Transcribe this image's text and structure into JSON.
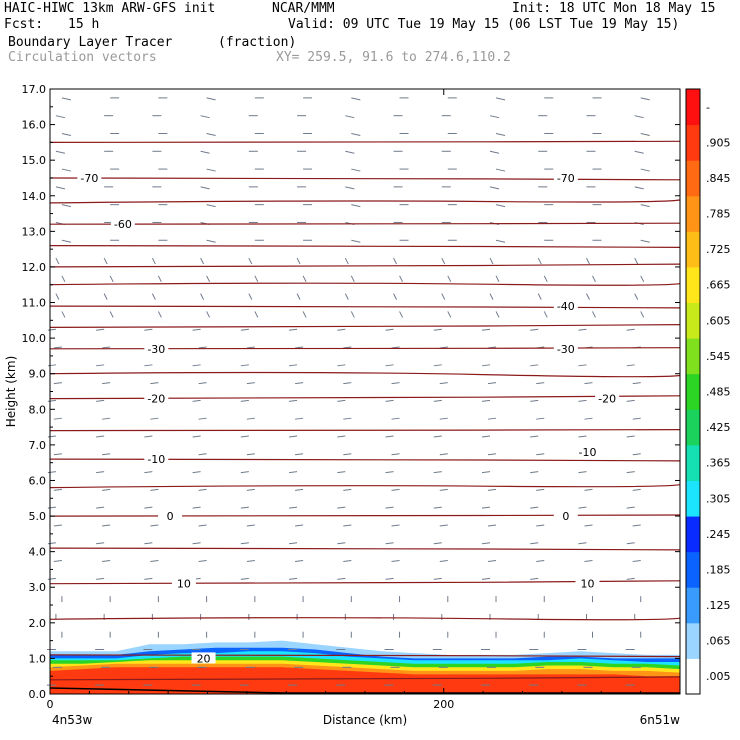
{
  "header": {
    "title": "HAIC-HIWC 13km ARW-GFS init",
    "org": "NCAR/MMM",
    "init": "Init: 18 UTC Mon 18 May 15",
    "fcst_label": "Fcst:",
    "fcst_value": "15 h",
    "valid": "Valid: 09 UTC Tue 19 May 15 (06 LST Tue 19 May 15)",
    "field": "Boundary Layer Tracer",
    "field_units": "(fraction)",
    "overlay": "Circulation vectors",
    "xy": "XY= 259.5, 91.6 to 274.6,110.2"
  },
  "colors": {
    "contour": "#8b1a1a",
    "vector": "#6f7a8a",
    "frame": "#000000"
  },
  "chart_data": {
    "type": "heatmap",
    "xlabel": "Distance (km)",
    "ylabel": "Height (km)",
    "xlim": [
      0,
      320
    ],
    "ylim": [
      0,
      17
    ],
    "x_ticks": [
      {
        "value": 0,
        "label": "0"
      },
      {
        "value": 200,
        "label": "200"
      }
    ],
    "x_end_labels": [
      "4n53w",
      "6n51w"
    ],
    "y_ticks": [
      "0.0",
      "1.0",
      "2.0",
      "3.0",
      "4.0",
      "5.0",
      "6.0",
      "7.0",
      "8.0",
      "9.0",
      "10.0",
      "11.0",
      "12.0",
      "13.0",
      "14.0",
      "15.0",
      "16.0",
      "17.0"
    ],
    "colorbar": {
      "labels": [
        ".005",
        ".065",
        ".125",
        ".185",
        ".245",
        ".305",
        ".365",
        ".425",
        ".485",
        ".545",
        ".605",
        ".665",
        ".725",
        ".785",
        ".845",
        ".905",
        "-"
      ],
      "colors": [
        "#ffffff",
        "#9ad5ff",
        "#3a9bff",
        "#0b63ff",
        "#0a2bff",
        "#1ce4ff",
        "#14e0b4",
        "#1ad25c",
        "#2cd424",
        "#7fe01e",
        "#c8ea1a",
        "#ffe61a",
        "#ffbd18",
        "#ff9416",
        "#ff6a12",
        "#ff3a10",
        "#ff1010"
      ]
    },
    "contour_levels": [
      0.4,
      1.1,
      2.1,
      3.1,
      4.1,
      5.0,
      5.8,
      6.6,
      7.4,
      8.3,
      9.0,
      9.7,
      10.3,
      10.9,
      11.5,
      12.0,
      12.6,
      13.2,
      13.8,
      14.5,
      15.5
    ],
    "contour_labels": [
      {
        "text": "-70",
        "x": 20,
        "y": 14.5
      },
      {
        "text": "-70",
        "x": 262,
        "y": 14.5
      },
      {
        "text": "-60",
        "x": 37,
        "y": 13.2
      },
      {
        "text": "-40",
        "x": 262,
        "y": 10.9
      },
      {
        "text": "-30",
        "x": 54,
        "y": 9.7
      },
      {
        "text": "-30",
        "x": 262,
        "y": 9.7
      },
      {
        "text": "-20",
        "x": 54,
        "y": 8.3
      },
      {
        "text": "-20",
        "x": 283,
        "y": 8.3
      },
      {
        "text": "-10",
        "x": 54,
        "y": 6.6
      },
      {
        "text": "-10",
        "x": 273,
        "y": 6.8
      },
      {
        "text": "0",
        "x": 61,
        "y": 5.0
      },
      {
        "text": "0",
        "x": 262,
        "y": 5.0
      },
      {
        "text": "10",
        "x": 68,
        "y": 3.1
      },
      {
        "text": "10",
        "x": 273,
        "y": 3.1
      },
      {
        "text": "20",
        "x": 78,
        "y": 1.0
      }
    ],
    "bl_layers": [
      {
        "value": ".065",
        "top": [
          1.2,
          1.2,
          1.2,
          1.4,
          1.4,
          1.45,
          1.45,
          1.5,
          1.4,
          1.3,
          1.2,
          1.15,
          1.1,
          1.1,
          1.1,
          1.15,
          1.2,
          1.15,
          1.1,
          1.1
        ]
      },
      {
        "value": ".185",
        "top": [
          1.1,
          1.1,
          1.1,
          1.2,
          1.25,
          1.3,
          1.3,
          1.3,
          1.25,
          1.15,
          1.05,
          1.0,
          1.0,
          1.0,
          1.0,
          1.05,
          1.05,
          1.0,
          1.0,
          1.0
        ]
      },
      {
        "value": ".305",
        "top": [
          1.0,
          1.0,
          1.0,
          1.1,
          1.15,
          1.15,
          1.2,
          1.2,
          1.15,
          1.05,
          1.0,
          0.95,
          0.95,
          0.95,
          0.95,
          0.95,
          1.0,
          0.95,
          0.9,
          0.9
        ]
      },
      {
        "value": ".485",
        "top": [
          0.95,
          0.95,
          0.95,
          1.0,
          1.05,
          1.05,
          1.05,
          1.05,
          1.0,
          0.95,
          0.9,
          0.85,
          0.85,
          0.85,
          0.85,
          0.9,
          0.9,
          0.85,
          0.85,
          0.8
        ]
      },
      {
        "value": ".665",
        "top": [
          0.85,
          0.85,
          0.9,
          0.95,
          0.95,
          0.95,
          0.95,
          0.95,
          0.9,
          0.85,
          0.8,
          0.75,
          0.75,
          0.75,
          0.75,
          0.8,
          0.8,
          0.75,
          0.75,
          0.7
        ]
      },
      {
        "value": ".785",
        "top": [
          0.75,
          0.8,
          0.85,
          0.85,
          0.85,
          0.85,
          0.85,
          0.85,
          0.8,
          0.75,
          0.7,
          0.65,
          0.65,
          0.65,
          0.65,
          0.7,
          0.7,
          0.65,
          0.65,
          0.6
        ]
      },
      {
        "value": ".905",
        "top": [
          0.65,
          0.7,
          0.75,
          0.75,
          0.75,
          0.75,
          0.75,
          0.75,
          0.7,
          0.65,
          0.6,
          0.55,
          0.55,
          0.55,
          0.55,
          0.55,
          0.55,
          0.55,
          0.5,
          0.5
        ]
      }
    ]
  }
}
